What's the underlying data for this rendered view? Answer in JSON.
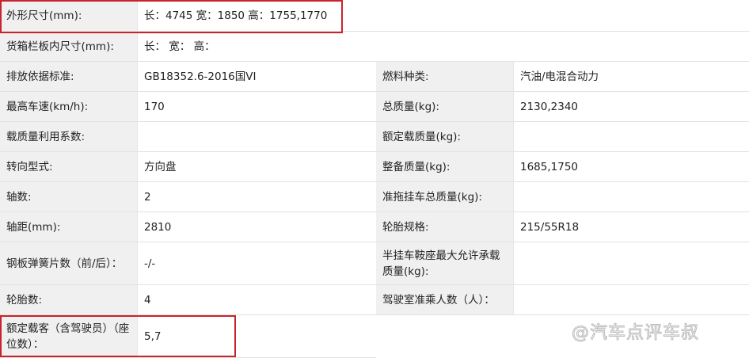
{
  "rows": [
    {
      "l1": "外形尺寸(mm):",
      "v1": "长：4745 宽：1850 高：1755,1770"
    },
    {
      "l1": "货箱栏板内尺寸(mm):",
      "v1": "长： 宽： 高："
    },
    {
      "l1": "排放依据标准:",
      "v1": "GB18352.6-2016国VI",
      "l2": "燃料种类:",
      "v2": "汽油/电混合动力"
    },
    {
      "l1": "最高车速(km/h):",
      "v1": "170",
      "l2": "总质量(kg):",
      "v2": "2130,2340"
    },
    {
      "l1": "载质量利用系数:",
      "v1": "",
      "l2": "额定载质量(kg):",
      "v2": ""
    },
    {
      "l1": "转向型式:",
      "v1": "方向盘",
      "l2": "整备质量(kg):",
      "v2": "1685,1750"
    },
    {
      "l1": "轴数:",
      "v1": "2",
      "l2": "准拖挂车总质量(kg):",
      "v2": ""
    },
    {
      "l1": "轴距(mm):",
      "v1": "2810",
      "l2": "轮胎规格:",
      "v2": "215/55R18"
    },
    {
      "l1": "钢板弹簧片数（前/后）：",
      "v1": "-/-",
      "l2": "半挂车鞍座最大允许承载质量(kg):",
      "v2": ""
    },
    {
      "l1": "轮胎数:",
      "v1": "4",
      "l2": "驾驶室准乘人数（人）：",
      "v2": ""
    },
    {
      "l1": "额定载客（含驾驶员）（座位数）：",
      "v1": "5,7"
    }
  ],
  "watermark": "@汽车点评车叔",
  "highlight_color": "#c8242b"
}
